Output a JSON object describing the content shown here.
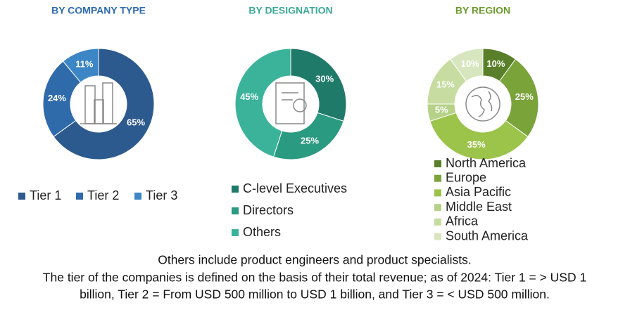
{
  "chart_data": [
    {
      "type": "pie",
      "title": "BY COMPANY TYPE",
      "title_color": "#2e6ab0",
      "categories": [
        "Tier 1",
        "Tier 2",
        "Tier 3"
      ],
      "values": [
        65,
        24,
        11
      ],
      "value_labels": [
        "65%",
        "24%",
        "11%"
      ],
      "colors": [
        "#2d5a8e",
        "#2f6aaa",
        "#3d86c6"
      ]
    },
    {
      "type": "pie",
      "title": "BY DESIGNATION",
      "title_color": "#3aa897",
      "categories": [
        "C-level Executives",
        "Directors",
        "Others"
      ],
      "values": [
        30,
        25,
        45
      ],
      "value_labels": [
        "30%",
        "25%",
        "45%"
      ],
      "colors": [
        "#1f7a6a",
        "#2a9a80",
        "#3bb39a"
      ]
    },
    {
      "type": "pie",
      "title": "BY REGION",
      "title_color": "#6a9a2a",
      "categories": [
        "North America",
        "Europe",
        "Asia Pacific",
        "Middle East",
        "Africa",
        "South America"
      ],
      "values": [
        10,
        25,
        35,
        5,
        15,
        10
      ],
      "value_labels": [
        "10%",
        "25%",
        "35%",
        "5%",
        "15%",
        "10%"
      ],
      "colors": [
        "#5a7f2a",
        "#7aa33a",
        "#9cc44a",
        "#b5d288",
        "#c6dca0",
        "#d8e6c0"
      ]
    }
  ],
  "notes": [
    "Others include product engineers and product specialists.",
    "The tier of the companies is defined on the basis of their total revenue; as of 2024: Tier 1 = > USD 1",
    "billion, Tier 2 = From USD 500 million to USD 1 billion, and Tier 3 = < USD 500 million."
  ]
}
